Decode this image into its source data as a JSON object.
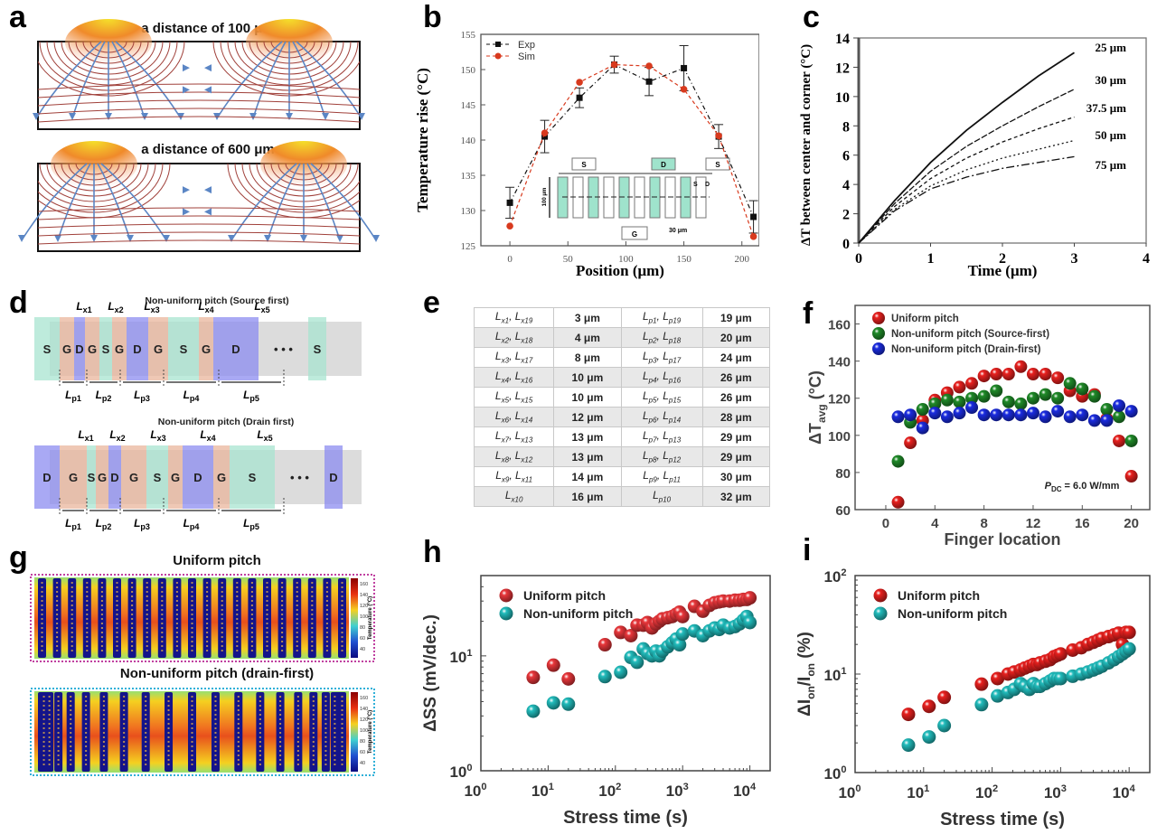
{
  "panels": {
    "a": {
      "label": "a",
      "top_title": "a distance of 100 μm",
      "bottom_title": "a distance of 600 μm"
    },
    "b": {
      "label": "b"
    },
    "c": {
      "label": "c"
    },
    "d": {
      "label": "d",
      "top_title": "Non-uniform pitch (Source first)",
      "bottom_title": "Non-uniform pitch (Drain first)",
      "top_sequence": [
        "S",
        "G",
        "D",
        "G",
        "S",
        "G",
        "D",
        "G",
        "S",
        "G",
        "D",
        "• • •",
        "S"
      ],
      "bottom_sequence": [
        "D",
        "G",
        "S",
        "G",
        "D",
        "G",
        "S",
        "G",
        "D",
        "G",
        "S",
        "• • •",
        "D"
      ],
      "lx_labels": [
        "L",
        "L",
        "L",
        "L",
        "L"
      ],
      "lx_subs": [
        "x1",
        "x2",
        "x3",
        "x4",
        "x5"
      ],
      "lp_subs": [
        "p1",
        "p2",
        "p3",
        "p4",
        "p5"
      ]
    },
    "e": {
      "label": "e",
      "rows": [
        {
          "lx": [
            "x1",
            "x19"
          ],
          "lx_val": "3 μm",
          "lp": [
            "p1",
            "p19"
          ],
          "lp_val": "19 μm"
        },
        {
          "lx": [
            "x2",
            "x18"
          ],
          "lx_val": "4 μm",
          "lp": [
            "p2",
            "p18"
          ],
          "lp_val": "20 μm"
        },
        {
          "lx": [
            "x3",
            "x17"
          ],
          "lx_val": "8 μm",
          "lp": [
            "p3",
            "p17"
          ],
          "lp_val": "24 μm"
        },
        {
          "lx": [
            "x4",
            "x16"
          ],
          "lx_val": "10 μm",
          "lp": [
            "p4",
            "p16"
          ],
          "lp_val": "26 μm"
        },
        {
          "lx": [
            "x5",
            "x15"
          ],
          "lx_val": "10 μm",
          "lp": [
            "p5",
            "p15"
          ],
          "lp_val": "26 μm"
        },
        {
          "lx": [
            "x6",
            "x14"
          ],
          "lx_val": "12 μm",
          "lp": [
            "p6",
            "p14"
          ],
          "lp_val": "28 μm"
        },
        {
          "lx": [
            "x7",
            "x13"
          ],
          "lx_val": "13 μm",
          "lp": [
            "p7",
            "p13"
          ],
          "lp_val": "29 μm"
        },
        {
          "lx": [
            "x8",
            "x12"
          ],
          "lx_val": "13 μm",
          "lp": [
            "p8",
            "p12"
          ],
          "lp_val": "29 μm"
        },
        {
          "lx": [
            "x9",
            "x11"
          ],
          "lx_val": "14 μm",
          "lp": [
            "p9",
            "p11"
          ],
          "lp_val": "30 μm"
        },
        {
          "lx": [
            "x10"
          ],
          "lx_val": "16 μm",
          "lp": [
            "p10"
          ],
          "lp_val": "32 μm"
        }
      ]
    },
    "f": {
      "label": "f"
    },
    "g": {
      "label": "g",
      "top_title": "Uniform pitch",
      "bottom_title": "Non-uniform pitch (drain-first)",
      "colorbar_ticks": [
        "160",
        "140",
        "120",
        "100",
        "80",
        "60",
        "40"
      ],
      "colorbar_label": "Temperature (°C)"
    },
    "h": {
      "label": "h"
    },
    "i": {
      "label": "i"
    }
  },
  "chart_data": [
    {
      "id": "b",
      "type": "line",
      "title": "",
      "xlabel": "Position (μm)",
      "ylabel": "Temperature rise (°C)",
      "xlim": [
        -25,
        215
      ],
      "ylim": [
        125,
        155
      ],
      "xticks": [
        0,
        50,
        100,
        150,
        200
      ],
      "yticks": [
        125,
        130,
        135,
        140,
        145,
        150,
        155
      ],
      "legend": "top-left",
      "x": [
        0,
        30,
        60,
        90,
        120,
        150,
        180,
        210
      ],
      "series": [
        {
          "name": "Exp",
          "color": "#111111",
          "marker": "square",
          "values": [
            131.1,
            140.5,
            146.0,
            150.7,
            148.3,
            150.2,
            140.5,
            129.1
          ],
          "errors": [
            2.2,
            2.3,
            1.4,
            1.2,
            2.0,
            3.2,
            1.7,
            2.3
          ]
        },
        {
          "name": "Sim",
          "color": "#d83a1e",
          "marker": "circle",
          "values": [
            127.8,
            141.0,
            148.2,
            150.7,
            150.5,
            147.2,
            140.6,
            126.3
          ]
        }
      ],
      "inset": {
        "top_labels": [
          "S",
          "D",
          "S"
        ],
        "bottom_label": "G",
        "side_label": "100 μm",
        "scale_label": "30 μm",
        "finger_labels": [
          "S",
          "D"
        ]
      }
    },
    {
      "id": "c",
      "type": "line",
      "title": "",
      "xlabel": "Time (μm)",
      "ylabel": "ΔT between center and corner (°C)",
      "xlim": [
        0,
        4
      ],
      "ylim": [
        0,
        14
      ],
      "xticks": [
        0,
        1,
        2,
        3,
        4
      ],
      "yticks": [
        0,
        2,
        4,
        6,
        8,
        10,
        12,
        14
      ],
      "x": [
        0,
        0.5,
        1,
        1.5,
        2,
        2.5,
        3
      ],
      "series": [
        {
          "name": "25 μm",
          "values": [
            0,
            2.9,
            5.5,
            7.7,
            9.6,
            11.4,
            13.0
          ]
        },
        {
          "name": "30 μm",
          "values": [
            0,
            2.7,
            4.9,
            6.6,
            8.0,
            9.3,
            10.5
          ]
        },
        {
          "name": "37.5 μm",
          "values": [
            0,
            2.5,
            4.4,
            5.8,
            6.9,
            7.8,
            8.6
          ]
        },
        {
          "name": "50 μm",
          "values": [
            0,
            2.3,
            3.9,
            5.0,
            5.8,
            6.4,
            7.0
          ]
        },
        {
          "name": "75 μm",
          "values": [
            0,
            2.2,
            3.7,
            4.5,
            5.1,
            5.5,
            5.9
          ]
        }
      ]
    },
    {
      "id": "f",
      "type": "scatter",
      "title": "",
      "xlabel": "Finger location",
      "ylabel": "ΔT_avg (°C)",
      "xlim": [
        -2.5,
        21.5
      ],
      "ylim": [
        60,
        170
      ],
      "xticks": [
        0,
        4,
        8,
        12,
        16,
        20
      ],
      "yticks": [
        60,
        80,
        100,
        120,
        140,
        160
      ],
      "legend": "top-left",
      "annotation": "P_DC = 6.0 W/mm",
      "x": [
        1,
        2,
        3,
        4,
        5,
        6,
        7,
        8,
        9,
        10,
        11,
        12,
        13,
        14,
        15,
        16,
        17,
        18,
        19,
        20
      ],
      "series": [
        {
          "name": "Uniform pitch",
          "color": "#e8201e",
          "values": [
            64,
            96,
            108,
            119,
            123,
            126,
            128,
            132,
            133,
            133,
            137,
            133,
            133,
            131,
            124,
            121,
            122,
            109,
            97,
            78
          ]
        },
        {
          "name": "Non-uniform  pitch (Source-first)",
          "color": "#1f8a28",
          "values": [
            86,
            107,
            114,
            117,
            119,
            118,
            120,
            121,
            124,
            118,
            117,
            120,
            122,
            120,
            128,
            125,
            121,
            114,
            110,
            97
          ]
        },
        {
          "name": "Non-uniform pitch (Drain-first)",
          "color": "#1a2be0",
          "values": [
            110,
            111,
            104,
            112,
            110,
            112,
            115,
            111,
            111,
            111,
            111,
            112,
            110,
            113,
            110,
            111,
            108,
            108,
            116,
            113
          ]
        }
      ]
    },
    {
      "id": "h",
      "type": "scatter",
      "title": "",
      "xlabel": "Stress time (s)",
      "ylabel": "ΔSS (mV/dec.)",
      "xscale": "log",
      "yscale": "log",
      "xlim": [
        1,
        20000
      ],
      "ylim": [
        1,
        50
      ],
      "xticks": [
        "10^0",
        "10^1",
        "10^2",
        "10^3",
        "10^4"
      ],
      "yticks": [
        "10^0",
        "10^1"
      ],
      "legend": "top-left",
      "series": [
        {
          "name": "Uniform pitch",
          "color": "#e8363a",
          "x": [
            6,
            12,
            20,
            70,
            120,
            170,
            210,
            260,
            300,
            350,
            400,
            450,
            500,
            600,
            700,
            800,
            900,
            1000,
            1500,
            2000,
            2500,
            3000,
            3500,
            4000,
            5000,
            6000,
            7000,
            8000,
            9000,
            10000
          ],
          "values": [
            6.5,
            8.3,
            6.3,
            12.5,
            16.0,
            15.0,
            18.5,
            18.5,
            19.5,
            17.5,
            19.0,
            20.0,
            21.0,
            21.5,
            22.0,
            23.0,
            24.0,
            22.0,
            27.0,
            24.5,
            27.5,
            29.0,
            29.5,
            30.0,
            30.0,
            30.5,
            30.5,
            31.0,
            31.0,
            32.0
          ]
        },
        {
          "name": "Non-uniform pitch",
          "color": "#21bcbc",
          "x": [
            6,
            12,
            20,
            70,
            120,
            170,
            210,
            260,
            300,
            350,
            400,
            450,
            500,
            600,
            700,
            800,
            900,
            1000,
            1500,
            2000,
            2500,
            3000,
            3500,
            4000,
            5000,
            6000,
            7000,
            8000,
            9000,
            10000
          ],
          "values": [
            3.3,
            3.9,
            3.8,
            6.6,
            7.2,
            9.7,
            8.8,
            11.5,
            10.5,
            10.0,
            11.0,
            10.0,
            11.0,
            12.0,
            13.0,
            14.0,
            12.5,
            15.5,
            16.5,
            15.0,
            16.5,
            17.5,
            17.0,
            18.5,
            17.5,
            18.0,
            19.0,
            20.5,
            22.0,
            19.5
          ]
        }
      ]
    },
    {
      "id": "i",
      "type": "scatter",
      "title": "",
      "xlabel": "Stress time (s)",
      "ylabel": "ΔI_on/I_on (%)",
      "xscale": "log",
      "yscale": "log",
      "xlim": [
        1,
        20000
      ],
      "ylim": [
        1,
        100
      ],
      "xticks": [
        "10^0",
        "10^1",
        "10^2",
        "10^3",
        "10^4"
      ],
      "yticks": [
        "10^0",
        "10^1",
        "10^2"
      ],
      "legend": "top-left",
      "series": [
        {
          "name": "Uniform pitch",
          "color": "#e8201e",
          "x": [
            6,
            12,
            20,
            70,
            120,
            170,
            210,
            260,
            300,
            350,
            400,
            450,
            500,
            600,
            700,
            800,
            900,
            1000,
            1500,
            2000,
            2500,
            3000,
            3500,
            4000,
            5000,
            6000,
            7000,
            8000,
            9000,
            10000
          ],
          "values": [
            3.9,
            4.7,
            5.8,
            7.9,
            9.0,
            10.0,
            10.5,
            11.0,
            11.5,
            12.0,
            12.5,
            12.5,
            13.0,
            13.5,
            14.0,
            15.0,
            15.5,
            16.0,
            17.5,
            18.5,
            20.0,
            21.0,
            22.0,
            23.0,
            24.0,
            25.0,
            26.0,
            20.0,
            26.5,
            26.5
          ]
        },
        {
          "name": "Non-uniform pitch",
          "color": "#21bcbc",
          "x": [
            6,
            12,
            20,
            70,
            120,
            170,
            210,
            260,
            300,
            350,
            400,
            450,
            500,
            600,
            700,
            800,
            900,
            1000,
            1500,
            2000,
            2500,
            3000,
            3500,
            4000,
            5000,
            6000,
            7000,
            8000,
            9000,
            10000
          ],
          "values": [
            1.9,
            2.3,
            3.0,
            4.9,
            6.0,
            6.5,
            7.0,
            8.0,
            7.5,
            7.0,
            8.0,
            7.5,
            7.5,
            8.0,
            8.5,
            9.0,
            9.0,
            9.0,
            9.5,
            10.0,
            10.5,
            11.0,
            11.5,
            12.0,
            13.0,
            14.0,
            15.0,
            16.0,
            17.0,
            18.0
          ]
        }
      ]
    }
  ]
}
